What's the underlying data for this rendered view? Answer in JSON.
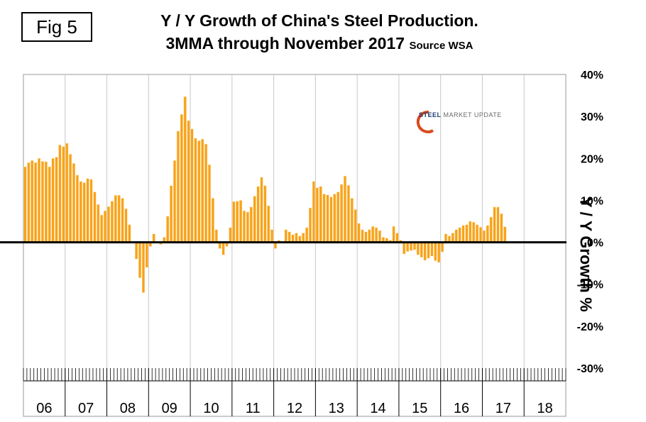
{
  "figure": {
    "label": "Fig 5",
    "title_line1": "Y / Y Growth of China's Steel Production.",
    "title_line2": "3MMA through November 2017",
    "source": "Source WSA",
    "logo": {
      "word1": "STEEL",
      "word2": "MARKET UPDATE"
    }
  },
  "colors": {
    "bar": "#f7a21b",
    "bar_edge": "#ffe6b3",
    "grid": "#c8c8c8",
    "zero_line": "#000000"
  },
  "chart_data": {
    "type": "bar",
    "ylabel": "Y / Y Growth %",
    "ylim": [
      -30,
      40
    ],
    "yticks": [
      40,
      30,
      20,
      10,
      0,
      -10,
      -20,
      -30
    ],
    "ytick_labels": [
      "40%",
      "30%",
      "20%",
      "10%",
      "0%",
      "-10%",
      "-20%",
      "-30%"
    ],
    "x_start": "2006-01",
    "year_labels": [
      "06",
      "07",
      "08",
      "09",
      "10",
      "11",
      "12",
      "13",
      "14",
      "15",
      "16",
      "17",
      "18"
    ],
    "months_per_year": 12,
    "grid": "vertical at year boundaries",
    "values": [
      18,
      19,
      19.5,
      19,
      20,
      19.3,
      19.2,
      18,
      20,
      20.3,
      23.2,
      22.8,
      23.6,
      21,
      18.8,
      16,
      14.5,
      14.2,
      15.2,
      15,
      12,
      9,
      6.5,
      7.5,
      8.5,
      9.8,
      11.2,
      11.2,
      10.5,
      8,
      4.2,
      0,
      -4,
      -8.5,
      -12,
      -6,
      -1,
      2,
      0,
      -0.5,
      1.2,
      6.2,
      13.5,
      19.5,
      26.5,
      30.5,
      34.7,
      29,
      27,
      24.8,
      24.2,
      24.6,
      23.4,
      18.5,
      10.5,
      3,
      -1.5,
      -3,
      -1,
      3.5,
      9.7,
      9.8,
      10,
      7.5,
      7.2,
      8.4,
      11,
      13.3,
      15.5,
      13.5,
      8.7,
      3,
      -1.5,
      0.5,
      0,
      3,
      2.5,
      1.8,
      2.2,
      1.5,
      2.2,
      3.5,
      8.2,
      14.5,
      13,
      13.3,
      11.5,
      11.3,
      10.8,
      11.5,
      12,
      13.8,
      15.8,
      13.6,
      10.5,
      7.8,
      4.5,
      3,
      2.5,
      3,
      3.8,
      3.5,
      2.8,
      1.2,
      1,
      0.5,
      3.8,
      2.2,
      0.5,
      -2.8,
      -2.2,
      -2,
      -1.8,
      -3,
      -3.6,
      -4.3,
      -3.8,
      -3.3,
      -4.4,
      -4.8,
      -2.3,
      2,
      1.5,
      2.2,
      3,
      3.5,
      4,
      4.2,
      5,
      4.8,
      4.2,
      3.6,
      2.8,
      4,
      6,
      8.4,
      8.4,
      6.8,
      3.7
    ]
  }
}
